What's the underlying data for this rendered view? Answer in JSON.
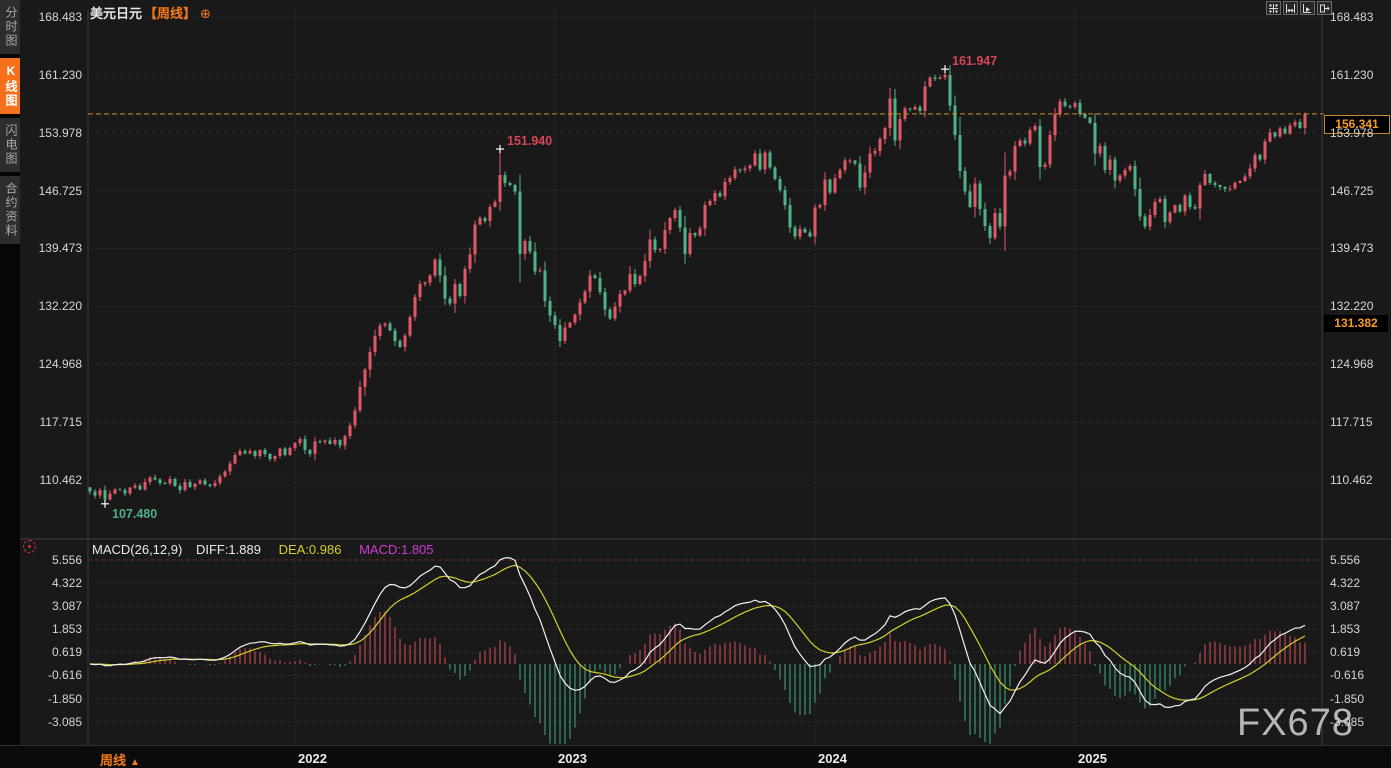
{
  "header": {
    "symbol": "美元日元",
    "period_tag": "【周线】",
    "add_icon_glyph": "⊕"
  },
  "sidebar": {
    "tabs": [
      {
        "label": "分时图",
        "active": false
      },
      {
        "label": "K线图",
        "active": true
      },
      {
        "label": "闪电图",
        "active": false
      },
      {
        "label": "合约资料",
        "active": false
      }
    ]
  },
  "toolbar": {
    "icons": [
      "pan-crosshair",
      "fit-scale",
      "axis-autoscroll",
      "shift-right"
    ]
  },
  "indicator": {
    "name": "MACD(26,12,9)",
    "diff_label": "DIFF:1.889",
    "dea_label": "DEA:0.986",
    "macd_label": "MACD:1.805",
    "colors": {
      "diff": "#f2f2f2",
      "dea": "#d3cf2e",
      "macd": "#d13bd1"
    }
  },
  "badges": {
    "last_price": "156.341",
    "secondary_price": "131.382"
  },
  "bottom": {
    "period": "周线",
    "arrow_glyph": "▲"
  },
  "watermark": "FX678",
  "price_axis_labels": [
    "168.483",
    "161.230",
    "153.978",
    "146.725",
    "139.473",
    "132.220",
    "124.968",
    "117.715",
    "110.462"
  ],
  "macd_axis_labels": [
    "5.556",
    "4.322",
    "3.087",
    "1.853",
    "0.619",
    "-0.616",
    "-1.850",
    "-3.085"
  ],
  "chart_data": {
    "type": "candlestick",
    "symbol": "USD/JPY",
    "timeframe": "weekly",
    "price_gridlines": [
      168.483,
      161.23,
      153.978,
      146.725,
      139.473,
      132.22,
      124.968,
      117.715,
      110.462
    ],
    "macd_gridlines": [
      5.556,
      4.322,
      3.087,
      1.853,
      0.619,
      -0.616,
      -1.85,
      -3.085
    ],
    "last_price": 156.341,
    "secondary_price": 131.382,
    "year_ticks": [
      {
        "label": "2022",
        "index": 41
      },
      {
        "label": "2023",
        "index": 93
      },
      {
        "label": "2024",
        "index": 145
      },
      {
        "label": "2025",
        "index": 197
      }
    ],
    "annotations": [
      {
        "index": 3,
        "price": 107.48,
        "label": "107.480",
        "kind": "low"
      },
      {
        "index": 82,
        "price": 151.94,
        "label": "151.940",
        "kind": "high"
      },
      {
        "index": 171,
        "price": 161.947,
        "label": "161.947",
        "kind": "high"
      }
    ],
    "closes": [
      109.0,
      108.5,
      109.2,
      108.0,
      108.8,
      109.3,
      109.2,
      108.8,
      109.5,
      109.8,
      109.3,
      110.2,
      110.8,
      110.5,
      110.1,
      110.0,
      110.6,
      109.7,
      109.2,
      110.2,
      109.6,
      110.0,
      110.4,
      109.9,
      109.7,
      110.1,
      110.9,
      111.5,
      112.5,
      113.6,
      114.1,
      113.8,
      114.1,
      113.5,
      114.2,
      113.7,
      113.1,
      113.5,
      114.4,
      113.6,
      114.5,
      115.1,
      115.6,
      114.2,
      113.7,
      115.3,
      115.2,
      115.4,
      115.0,
      115.5,
      114.8,
      116.0,
      117.3,
      119.2,
      122.1,
      124.3,
      126.5,
      128.5,
      129.8,
      130.1,
      129.2,
      127.9,
      127.1,
      128.6,
      130.9,
      133.4,
      135.0,
      135.2,
      136.1,
      138.1,
      136.1,
      133.2,
      132.6,
      135.0,
      133.5,
      136.9,
      138.7,
      142.5,
      143.3,
      142.9,
      144.7,
      145.3,
      148.7,
      147.7,
      147.4,
      146.6,
      138.8,
      140.4,
      139.1,
      136.6,
      136.7,
      132.9,
      131.1,
      129.9,
      127.9,
      129.6,
      130.2,
      131.2,
      132.7,
      134.1,
      136.1,
      135.8,
      134.0,
      131.8,
      130.7,
      132.2,
      133.8,
      134.2,
      136.3,
      135.0,
      136.0,
      137.9,
      140.6,
      139.3,
      139.4,
      141.8,
      143.3,
      144.3,
      142.1,
      138.8,
      141.4,
      141.1,
      142.0,
      144.9,
      145.4,
      146.4,
      146.0,
      147.8,
      148.3,
      149.4,
      149.3,
      149.5,
      149.9,
      151.4,
      149.4,
      151.5,
      149.6,
      148.2,
      146.8,
      144.9,
      142.1,
      141.0,
      141.9,
      141.5,
      141.0,
      144.6,
      144.9,
      148.1,
      146.5,
      148.3,
      149.3,
      150.5,
      150.5,
      150.1,
      147.1,
      149.0,
      151.4,
      151.7,
      153.2,
      154.6,
      158.3,
      153.0,
      155.7,
      157.0,
      156.9,
      157.2,
      156.7,
      159.8,
      160.9,
      160.7,
      160.9,
      161.2,
      157.4,
      153.7,
      149.2,
      146.6,
      144.7,
      147.6,
      144.4,
      142.3,
      140.8,
      143.9,
      142.2,
      148.6,
      149.1,
      152.3,
      153.0,
      152.6,
      154.3,
      154.8,
      149.7,
      150.0,
      153.7,
      156.3,
      157.9,
      157.3,
      157.2,
      157.7,
      156.3,
      155.9,
      155.2,
      151.4,
      152.3,
      149.3,
      150.6,
      148.0,
      148.6,
      149.3,
      149.8,
      146.9,
      143.5,
      142.2,
      143.7,
      145.3,
      145.7,
      142.8,
      144.0,
      144.9,
      144.1,
      146.1,
      144.7,
      144.5,
      147.4,
      148.8,
      147.7,
      147.4,
      147.2,
      146.9,
      147.0,
      147.7,
      147.9,
      148.5,
      149.5,
      151.2,
      150.6,
      152.9,
      154.0,
      153.5,
      154.5,
      153.9,
      154.9,
      155.3,
      154.6,
      156.341
    ],
    "macd_params": {
      "slow": 26,
      "fast": 12,
      "signal": 9,
      "histogram_formula": "2*(DIFF-DEA)"
    },
    "colors": {
      "up": "#e15866",
      "down": "#51b287",
      "grid": "#3d3d3d",
      "accent_line": "#cf8a1f",
      "ann_high": "#d8455a",
      "ann_low": "#4fae85",
      "hist_up": "#d94f5c",
      "hist_down": "#3fae7e"
    }
  }
}
